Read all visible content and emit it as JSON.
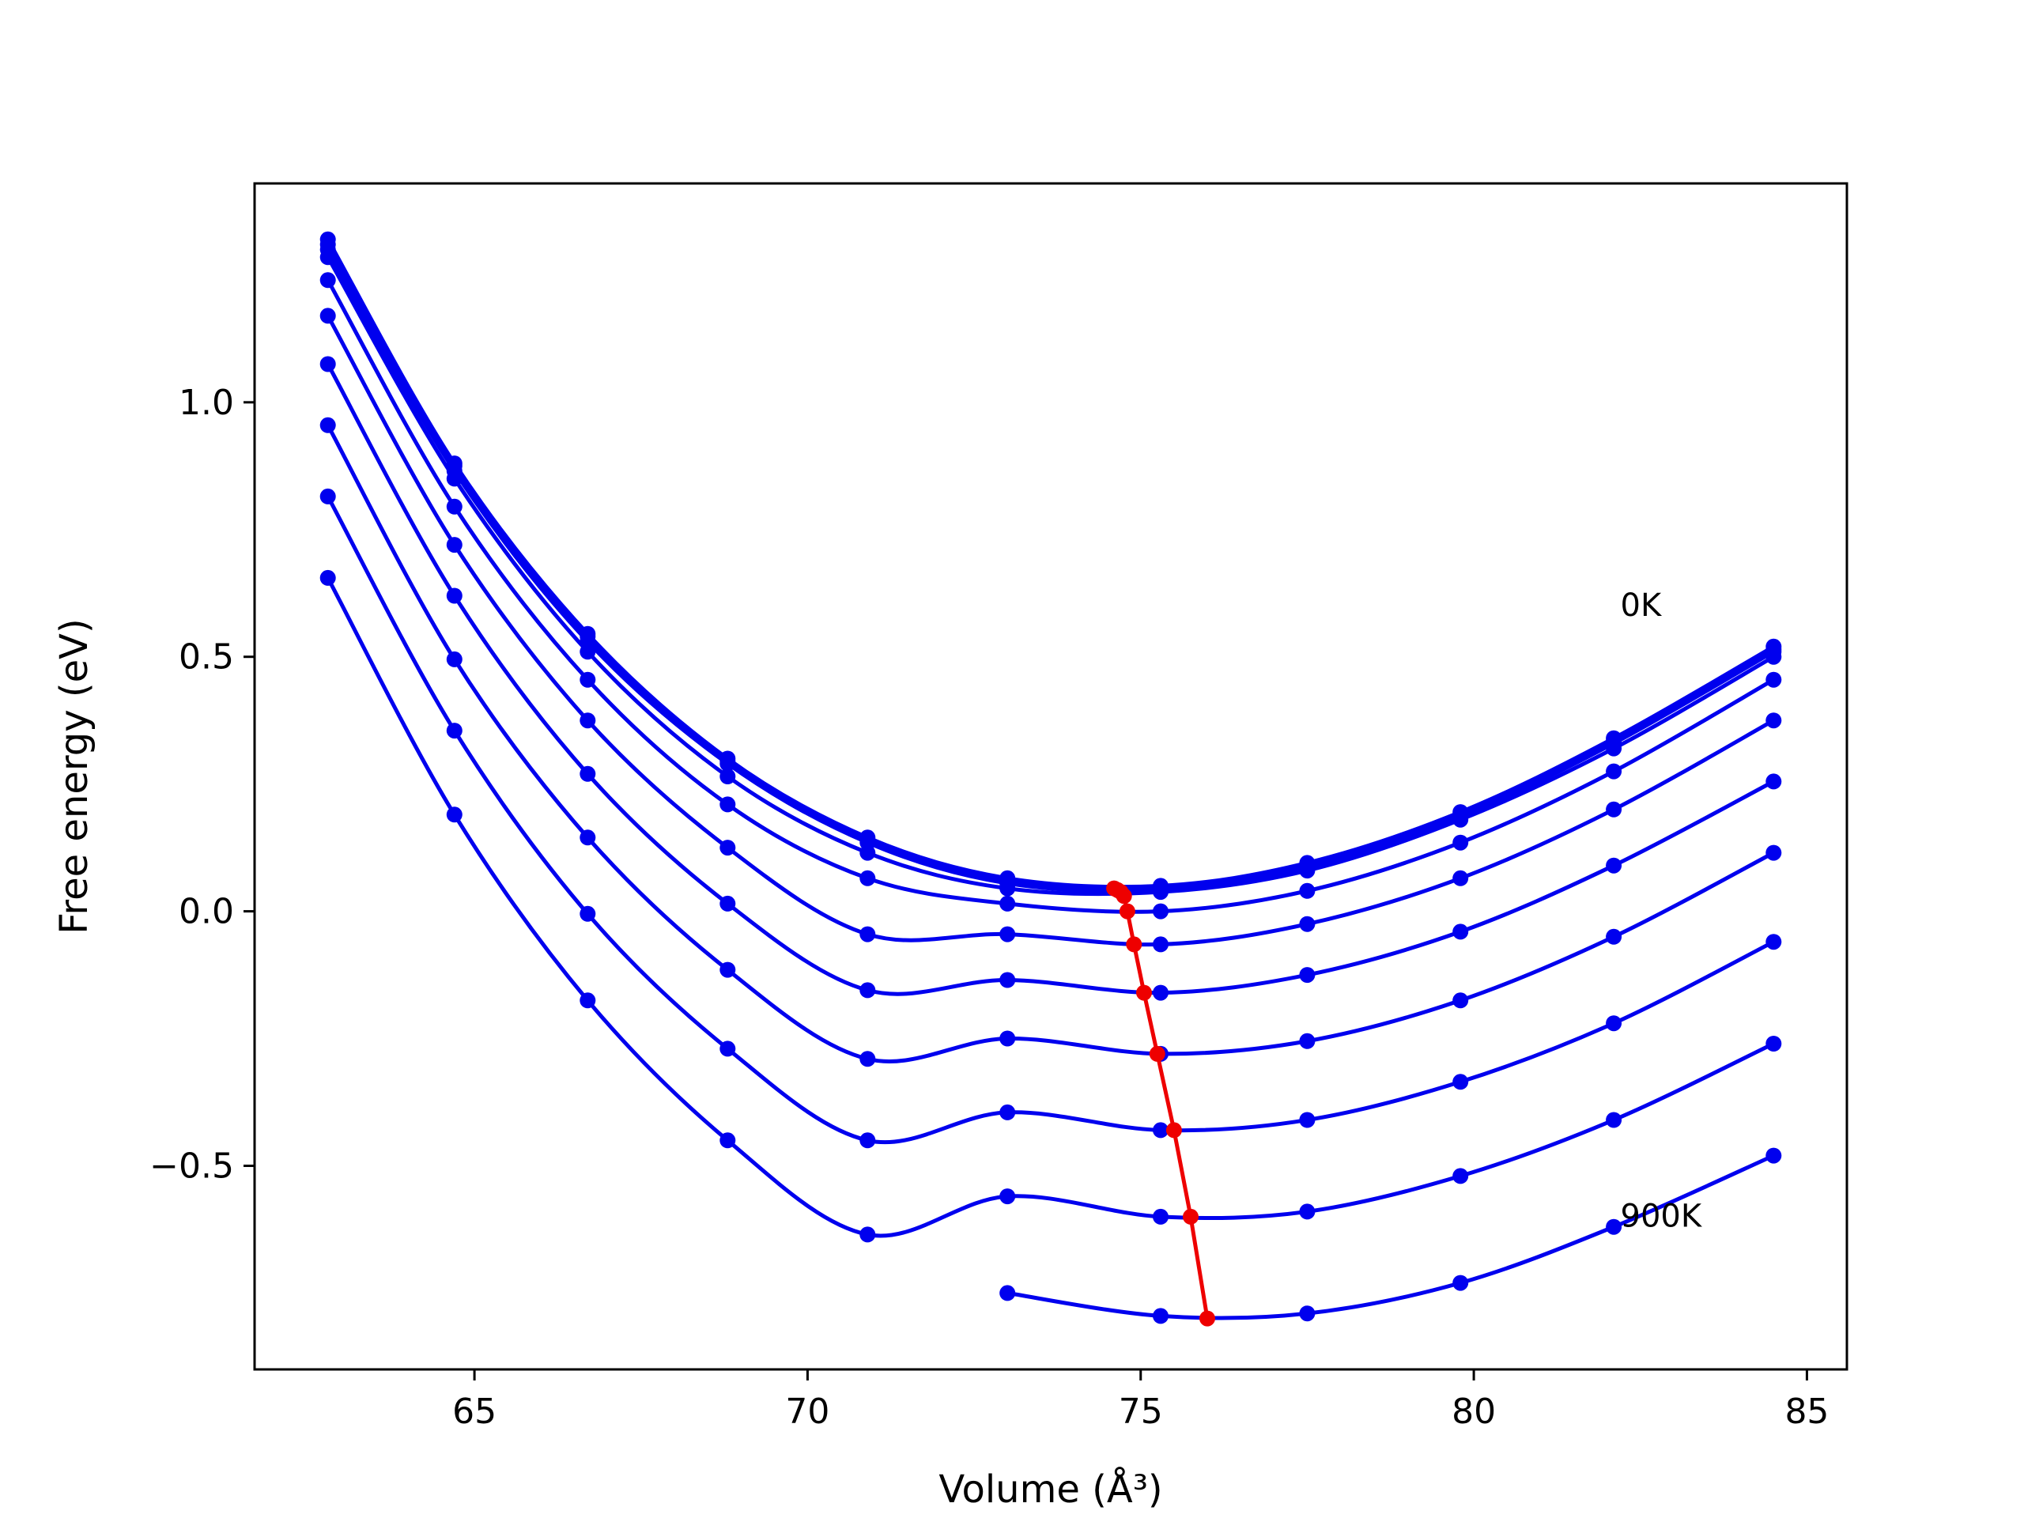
{
  "chart_data": {
    "type": "line",
    "xlabel": "Volume (Å³)",
    "ylabel": "Free energy (eV)",
    "xlim": [
      61.7,
      85.6
    ],
    "ylim": [
      -0.9,
      1.43
    ],
    "xticks": [
      65,
      70,
      75,
      80,
      85
    ],
    "yticks": [
      -0.5,
      0.0,
      0.5,
      1.0
    ],
    "xtick_labels": [
      "65",
      "70",
      "75",
      "80",
      "85"
    ],
    "ytick_labels": [
      "−0.5",
      "0.0",
      "0.5",
      "1.0"
    ],
    "grid": false,
    "annotations": [
      {
        "text": "0K",
        "x": 82.2,
        "y": 0.58
      },
      {
        "text": "900K",
        "x": 82.2,
        "y": -0.62
      }
    ],
    "x": [
      62.8,
      64.7,
      66.7,
      68.8,
      70.9,
      73.0,
      75.3,
      77.5,
      79.8,
      82.1,
      84.5
    ],
    "series": [
      {
        "values": [
          1.32,
          0.88,
          0.545,
          0.3,
          0.145,
          0.065,
          0.05,
          0.095,
          0.195,
          0.34,
          0.52
        ],
        "min": {
          "x": 74.6,
          "y": 0.045
        }
      },
      {
        "values": [
          1.31,
          0.875,
          0.54,
          0.295,
          0.14,
          0.06,
          0.045,
          0.09,
          0.19,
          0.335,
          0.515
        ],
        "min": {
          "x": 74.65,
          "y": 0.042
        }
      },
      {
        "values": [
          1.3,
          0.865,
          0.53,
          0.29,
          0.135,
          0.055,
          0.042,
          0.085,
          0.185,
          0.33,
          0.51
        ],
        "min": {
          "x": 74.7,
          "y": 0.038
        }
      },
      {
        "values": [
          1.285,
          0.85,
          0.51,
          0.265,
          0.115,
          0.045,
          0.038,
          0.08,
          0.18,
          0.32,
          0.5
        ],
        "min": {
          "x": 74.75,
          "y": 0.03
        }
      },
      {
        "values": [
          1.24,
          0.795,
          0.455,
          0.21,
          0.065,
          0.015,
          0.0,
          0.04,
          0.135,
          0.275,
          0.455
        ],
        "min": {
          "x": 74.8,
          "y": 0.0
        }
      },
      {
        "values": [
          1.17,
          0.72,
          0.375,
          0.125,
          -0.045,
          -0.045,
          -0.065,
          -0.025,
          0.065,
          0.2,
          0.375
        ],
        "min": {
          "x": 74.9,
          "y": -0.065
        }
      },
      {
        "values": [
          1.075,
          0.62,
          0.27,
          0.015,
          -0.155,
          -0.135,
          -0.16,
          -0.125,
          -0.04,
          0.09,
          0.255
        ],
        "min": {
          "x": 75.05,
          "y": -0.16
        }
      },
      {
        "values": [
          0.955,
          0.495,
          0.145,
          -0.115,
          -0.29,
          -0.25,
          -0.28,
          -0.255,
          -0.175,
          -0.05,
          0.115
        ],
        "min": {
          "x": 75.25,
          "y": -0.28
        }
      },
      {
        "values": [
          0.815,
          0.355,
          -0.005,
          -0.27,
          -0.45,
          -0.395,
          -0.43,
          -0.41,
          -0.335,
          -0.22,
          -0.06
        ],
        "min": {
          "x": 75.5,
          "y": -0.43
        }
      },
      {
        "values": [
          0.655,
          0.19,
          -0.175,
          -0.45,
          -0.635,
          -0.56,
          -0.6,
          -0.59,
          -0.52,
          -0.41,
          -0.26
        ],
        "min": {
          "x": 75.75,
          "y": -0.6
        }
      },
      {
        "values": [
          null,
          null,
          null,
          null,
          null,
          -0.75,
          -0.795,
          -0.79,
          -0.73,
          -0.62,
          -0.48
        ],
        "min": {
          "x": 76.0,
          "y": -0.8
        }
      }
    ],
    "colors": {
      "curves": "#0000ee",
      "minimum_path": "#ee0000",
      "axes": "#000000"
    }
  }
}
